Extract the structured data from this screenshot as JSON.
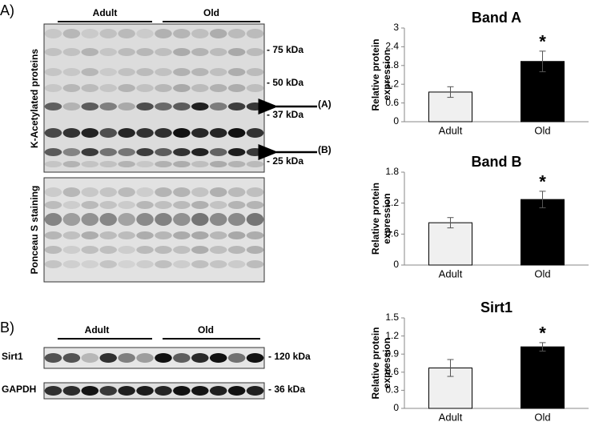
{
  "figure": {
    "panel_a": "A)",
    "panel_b": "B)",
    "group_adult": "Adult",
    "group_old": "Old",
    "acetyl_label": "K-Acetylated proteins",
    "ponceau_label": "Ponceau S staining",
    "kda_a": [
      "- 75 kDa",
      "- 50 kDa",
      "- 37 kDa",
      "- 25 kDa"
    ],
    "arrow_a": "(A)",
    "arrow_b": "(B)",
    "sirt1_label": "Sirt1",
    "gapdh_label": "GAPDH",
    "kda_b": [
      "- 120 kDa",
      "- 36 kDa"
    ]
  },
  "chart_data": [
    {
      "type": "bar",
      "title": "Band A",
      "ylabel": [
        "Relative protein",
        "expression"
      ],
      "categories": [
        "Adult",
        "Old"
      ],
      "values": [
        0.95,
        1.93
      ],
      "errors": [
        0.17,
        0.33
      ],
      "colors": [
        "#f0f0f0",
        "#000000"
      ],
      "annotations": [
        null,
        "*"
      ],
      "ylim": [
        0,
        3
      ],
      "yticks": [
        0,
        0.6,
        1.2,
        1.8,
        2.4,
        3
      ]
    },
    {
      "type": "bar",
      "title": "Band B",
      "ylabel": [
        "Relative protein",
        "expression"
      ],
      "categories": [
        "Adult",
        "Old"
      ],
      "values": [
        0.82,
        1.27
      ],
      "errors": [
        0.1,
        0.16
      ],
      "colors": [
        "#f0f0f0",
        "#000000"
      ],
      "annotations": [
        null,
        "*"
      ],
      "ylim": [
        0,
        1.8
      ],
      "yticks": [
        0,
        0.6,
        1.2,
        1.8
      ]
    },
    {
      "type": "bar",
      "title": "Sirt1",
      "ylabel": [
        "Relative protein",
        "expression"
      ],
      "categories": [
        "Adult",
        "Old"
      ],
      "values": [
        0.67,
        1.02
      ],
      "errors": [
        0.14,
        0.07
      ],
      "colors": [
        "#f0f0f0",
        "#000000"
      ],
      "annotations": [
        null,
        "*"
      ],
      "ylim": [
        0,
        1.5
      ],
      "yticks": [
        0,
        0.3,
        0.6,
        0.9,
        1.2,
        1.5
      ]
    }
  ]
}
